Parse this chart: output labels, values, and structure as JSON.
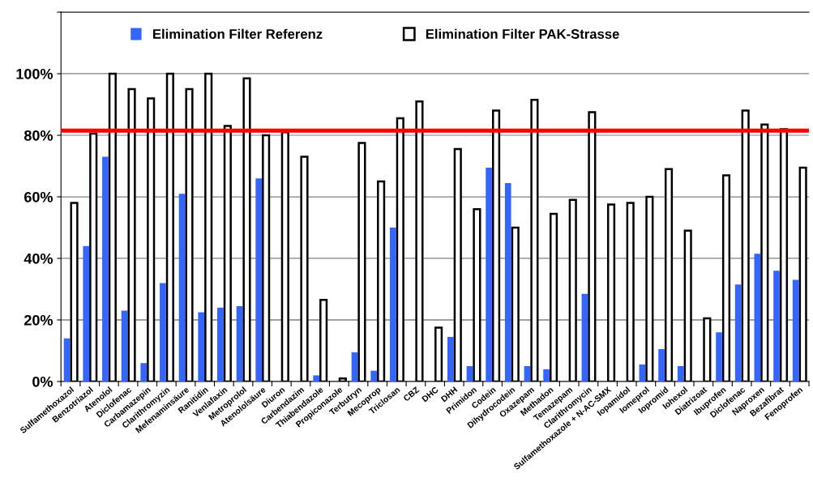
{
  "chart_data": {
    "type": "bar",
    "categories": [
      "Sulfamethoxazol",
      "Benzotriazol",
      "Atenolol",
      "Diclofenac",
      "Carbamazepin",
      "Clarithromyzin",
      "Mefenaminsäure",
      "Ranitidin",
      "Venlafaxin",
      "Metroprolol",
      "Atenololsäure",
      "Diuron",
      "Carbendazim",
      "Thiabendazole",
      "Propiconazole",
      "Terbutryn",
      "Mecoprop",
      "Triclosan",
      "CBZ",
      "DHC",
      "DHH",
      "Primidon",
      "Codein",
      "Dihydrocodein",
      "Oxazepam",
      "Methadon",
      "Temazepam",
      "Clarithromycin",
      "Sulfamethoxazole + N-AC-SMX",
      "Iopamidol",
      "Iomeprol",
      "Iopromid",
      "Iohexol",
      "Diatrizoat",
      "Ibuprofen",
      "Diclofenac",
      "Naproxen",
      "Bezafibrat",
      "Fenoprofen"
    ],
    "series": [
      {
        "name": "Elimination Filter Referenz",
        "color": "#3366ff",
        "values": [
          14,
          44,
          73,
          23,
          6,
          32,
          61,
          22.5,
          24,
          24.5,
          66,
          null,
          null,
          2,
          null,
          9.5,
          3.5,
          50,
          null,
          null,
          14.5,
          5,
          69.5,
          64.5,
          5,
          4,
          null,
          28.5,
          null,
          null,
          5.5,
          10.5,
          5,
          null,
          16,
          31.5,
          41.5,
          36,
          33
        ]
      },
      {
        "name": "Elimination Filter PAK-Strasse",
        "color": "#ffffff",
        "values": [
          58,
          80.5,
          100,
          95,
          92,
          100,
          95,
          100,
          83,
          98.5,
          80,
          81,
          73,
          26.5,
          1,
          77.5,
          65,
          85.5,
          91,
          17.5,
          75.5,
          56,
          88,
          50,
          91.5,
          54.5,
          59,
          87.5,
          57.5,
          58,
          60,
          69,
          49,
          20.5,
          67,
          88,
          83.5,
          82,
          69.5
        ]
      }
    ],
    "ylim": [
      0,
      120
    ],
    "yticks": [
      {
        "value": 0,
        "label": "0%"
      },
      {
        "value": 20,
        "label": "20%"
      },
      {
        "value": 40,
        "label": "40%"
      },
      {
        "value": 60,
        "label": "60%"
      },
      {
        "value": 80,
        "label": "80%"
      },
      {
        "value": 100,
        "label": "100%"
      },
      {
        "value": 120,
        "label": null
      }
    ],
    "ref_lines": [
      {
        "axis": "y",
        "value": 81.5,
        "color": "#ff0000"
      }
    ],
    "grid": "y",
    "legend": "top"
  }
}
